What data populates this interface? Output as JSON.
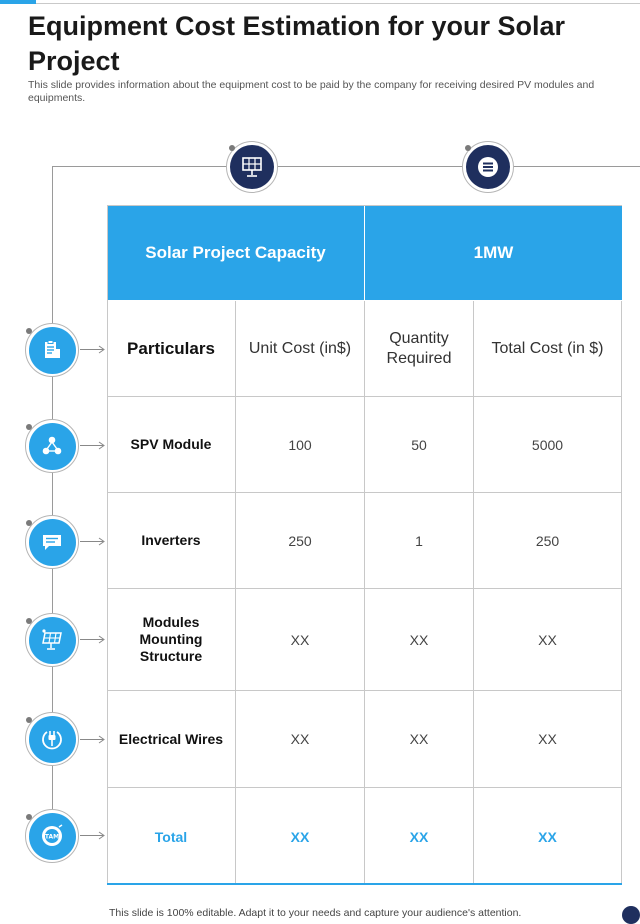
{
  "page": {
    "title": "Equipment Cost Estimation for your Solar Project",
    "subtitle": "This slide provides information about the equipment cost to be paid by the company for receiving desired PV modules and equipments.",
    "footer": "This slide is 100% editable. Adapt it to your needs and capture your audience's attention."
  },
  "colors": {
    "accent": "#2aa4e8",
    "navy": "#1f2f5e",
    "grid": "#c8c8c8"
  },
  "icons": {
    "top": [
      "solar-panel-icon",
      "list-icon"
    ],
    "side": [
      "clipboard-icon",
      "network-icon",
      "chat-bubble-icon",
      "solar-panel-icon",
      "power-plug-icon",
      "tam-target-icon"
    ]
  },
  "table": {
    "header": {
      "label": "Solar Project Capacity",
      "value": "1MW"
    },
    "columns": [
      "Particulars",
      "Unit Cost (in$)",
      "Quantity Required",
      "Total Cost (in $)"
    ],
    "rows": [
      {
        "name": "SPV Module",
        "unit": "100",
        "qty": "50",
        "total": "5000"
      },
      {
        "name": "Inverters",
        "unit": "250",
        "qty": "1",
        "total": "250"
      },
      {
        "name": "Modules Mounting Structure",
        "unit": "XX",
        "qty": "XX",
        "total": "XX"
      },
      {
        "name": "Electrical Wires",
        "unit": "XX",
        "qty": "XX",
        "total": "XX"
      }
    ],
    "total": {
      "name": "Total",
      "unit": "XX",
      "qty": "XX",
      "total": "XX"
    }
  }
}
